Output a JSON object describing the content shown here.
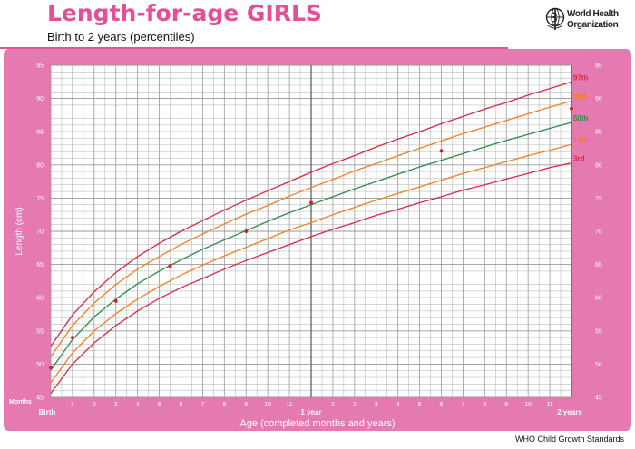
{
  "page": {
    "title": "Length-for-age GIRLS",
    "subtitle": "Birth to 2 years (percentiles)",
    "organization": "World Health Organization",
    "organization_line1": "World Health",
    "organization_line2": "Organization",
    "footer": "WHO Child Growth Standards",
    "logo_icon": "who-emblem-icon"
  },
  "colors": {
    "frame": "#e57ab0",
    "plot_bg": "#ffffff",
    "grid": "#9a9a9a",
    "frame_text": "#ffffff",
    "p97": "#d62a45",
    "p85": "#f07f23",
    "p50": "#2e8b4a",
    "p15": "#f07f23",
    "p3": "#d62a45",
    "points": "#d0202a"
  },
  "chart_data": {
    "type": "line",
    "title": "Length-for-age GIRLS",
    "subtitle": "Birth to 2 years (percentiles)",
    "xlabel": "Age (completed months and years)",
    "ylabel": "Length (cm)",
    "x_unit_label": "Months",
    "xlim": [
      0,
      24
    ],
    "ylim": [
      45,
      95
    ],
    "grid": true,
    "y_ticks": [
      45,
      50,
      55,
      60,
      65,
      70,
      75,
      80,
      85,
      90,
      95
    ],
    "x_tick_labels": [
      {
        "x": 0,
        "label": "Birth",
        "bold": true
      },
      {
        "x": 1,
        "label": "1"
      },
      {
        "x": 2,
        "label": "2"
      },
      {
        "x": 3,
        "label": "3"
      },
      {
        "x": 4,
        "label": "4"
      },
      {
        "x": 5,
        "label": "5"
      },
      {
        "x": 6,
        "label": "6"
      },
      {
        "x": 7,
        "label": "7"
      },
      {
        "x": 8,
        "label": "8"
      },
      {
        "x": 9,
        "label": "9"
      },
      {
        "x": 10,
        "label": "10"
      },
      {
        "x": 11,
        "label": "11"
      },
      {
        "x": 12,
        "label": "1 year",
        "bold": true
      },
      {
        "x": 13,
        "label": "1"
      },
      {
        "x": 14,
        "label": "2"
      },
      {
        "x": 15,
        "label": "3"
      },
      {
        "x": 16,
        "label": "4"
      },
      {
        "x": 17,
        "label": "5"
      },
      {
        "x": 18,
        "label": "6"
      },
      {
        "x": 19,
        "label": "7"
      },
      {
        "x": 20,
        "label": "8"
      },
      {
        "x": 21,
        "label": "9"
      },
      {
        "x": 22,
        "label": "10"
      },
      {
        "x": 23,
        "label": "11"
      },
      {
        "x": 24,
        "label": "2 years",
        "bold": true
      }
    ],
    "x": [
      0,
      1,
      2,
      3,
      4,
      5,
      6,
      7,
      8,
      9,
      10,
      11,
      12,
      13,
      14,
      15,
      16,
      17,
      18,
      19,
      20,
      21,
      22,
      23,
      24
    ],
    "series": [
      {
        "name": "97th",
        "color_key": "p97",
        "values": [
          52.7,
          57.4,
          60.9,
          63.8,
          66.2,
          68.2,
          70.0,
          71.6,
          73.2,
          74.7,
          76.1,
          77.5,
          78.9,
          80.2,
          81.4,
          82.7,
          83.9,
          85.0,
          86.2,
          87.3,
          88.4,
          89.4,
          90.5,
          91.5,
          92.5
        ]
      },
      {
        "name": "85th",
        "color_key": "p85",
        "values": [
          51.1,
          55.8,
          59.2,
          62.0,
          64.3,
          66.2,
          68.0,
          69.6,
          71.1,
          72.6,
          73.9,
          75.3,
          76.6,
          77.8,
          79.1,
          80.2,
          81.4,
          82.5,
          83.6,
          84.7,
          85.7,
          86.7,
          87.7,
          88.7,
          89.6
        ]
      },
      {
        "name": "50th",
        "color_key": "p50",
        "values": [
          49.1,
          53.7,
          57.1,
          59.8,
          62.1,
          64.0,
          65.7,
          67.3,
          68.7,
          70.1,
          71.5,
          72.8,
          74.0,
          75.2,
          76.4,
          77.5,
          78.6,
          79.7,
          80.7,
          81.7,
          82.7,
          83.7,
          84.6,
          85.5,
          86.4
        ]
      },
      {
        "name": "15th",
        "color_key": "p15",
        "values": [
          47.2,
          51.7,
          55.0,
          57.6,
          59.8,
          61.7,
          63.4,
          64.9,
          66.3,
          67.6,
          68.9,
          70.2,
          71.3,
          72.5,
          73.6,
          74.7,
          75.7,
          76.7,
          77.7,
          78.7,
          79.6,
          80.5,
          81.4,
          82.2,
          83.1
        ]
      },
      {
        "name": "3rd",
        "color_key": "p3",
        "values": [
          45.6,
          50.0,
          53.2,
          55.8,
          58.0,
          59.9,
          61.5,
          62.9,
          64.3,
          65.6,
          66.8,
          68.0,
          69.2,
          70.3,
          71.3,
          72.4,
          73.3,
          74.3,
          75.2,
          76.2,
          77.0,
          77.9,
          78.7,
          79.6,
          80.3
        ]
      }
    ],
    "points": [
      {
        "x": 0,
        "y": 49.5
      },
      {
        "x": 1,
        "y": 54.0
      },
      {
        "x": 3,
        "y": 59.5
      },
      {
        "x": 5.5,
        "y": 64.8
      },
      {
        "x": 9,
        "y": 70.0
      },
      {
        "x": 12,
        "y": 74.3
      },
      {
        "x": 18,
        "y": 82.1
      },
      {
        "x": 24,
        "y": 88.5
      }
    ]
  }
}
